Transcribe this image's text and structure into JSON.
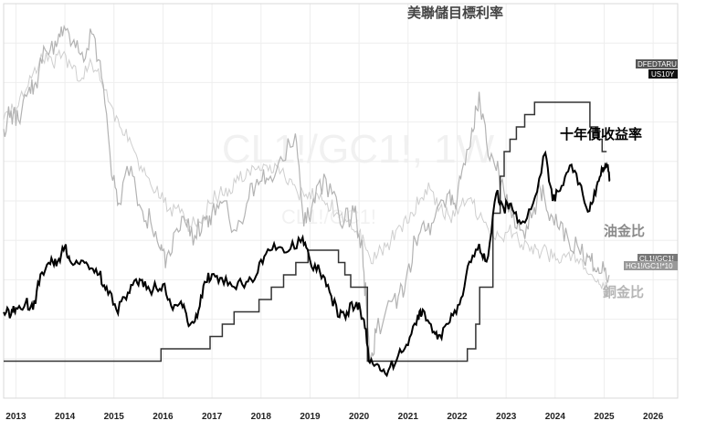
{
  "chart_data": {
    "type": "line",
    "watermark": {
      "main": "CL1!/GC1!, 1W",
      "sub": "CL1!/GC1!"
    },
    "x_ticks": [
      "2013",
      "2014",
      "2015",
      "2016",
      "2017",
      "2018",
      "2019",
      "2020",
      "2021",
      "2022",
      "2023",
      "2024",
      "2025",
      "2026"
    ],
    "xlim": [
      2012.75,
      2026.5
    ],
    "annotations": {
      "fed_rate": "美聯儲目標利率",
      "us10y": "十年債收益率",
      "oil_gold": "油金比",
      "copper_gold": "銅金比"
    },
    "badges": {
      "fed": "DFEDTARU",
      "us10y": "US10Y",
      "oil": "CL1!/GC1!",
      "copper": "HG1!/GC1!*10"
    },
    "colors": {
      "fed": "#333333",
      "us10y": "#000000",
      "oil": "#b3b3b3",
      "copper": "#cfcfcf",
      "badge_dark": "#111111",
      "badge_mid": "#555555",
      "badge_light": "#999999"
    },
    "series": [
      {
        "name": "DFEDTARU",
        "step": true,
        "ylim": [
          -0.5,
          7.5
        ],
        "points": [
          [
            2012.75,
            0.25
          ],
          [
            2015.96,
            0.5
          ],
          [
            2016.96,
            0.75
          ],
          [
            2017.21,
            1.0
          ],
          [
            2017.45,
            1.25
          ],
          [
            2017.96,
            1.5
          ],
          [
            2018.21,
            1.75
          ],
          [
            2018.46,
            2.0
          ],
          [
            2018.71,
            2.25
          ],
          [
            2018.96,
            2.5
          ],
          [
            2019.58,
            2.25
          ],
          [
            2019.71,
            2.0
          ],
          [
            2019.83,
            1.75
          ],
          [
            2020.17,
            0.25
          ],
          [
            2022.21,
            0.5
          ],
          [
            2022.38,
            1.0
          ],
          [
            2022.46,
            1.75
          ],
          [
            2022.73,
            3.25
          ],
          [
            2022.88,
            4.0
          ],
          [
            2022.96,
            4.5
          ],
          [
            2023.08,
            4.75
          ],
          [
            2023.21,
            5.0
          ],
          [
            2023.38,
            5.25
          ],
          [
            2023.58,
            5.5
          ],
          [
            2024.71,
            5.0
          ],
          [
            2024.87,
            4.75
          ],
          [
            2024.96,
            4.5
          ],
          [
            2025.05,
            4.5
          ]
        ]
      },
      {
        "name": "US10Y",
        "ylim": [
          0,
          7.8
        ],
        "points": [
          [
            2012.75,
            1.7
          ],
          [
            2012.9,
            1.65
          ],
          [
            2013.0,
            1.78
          ],
          [
            2013.2,
            1.9
          ],
          [
            2013.35,
            1.75
          ],
          [
            2013.5,
            2.45
          ],
          [
            2013.7,
            2.65
          ],
          [
            2013.85,
            2.7
          ],
          [
            2014.0,
            3.0
          ],
          [
            2014.1,
            2.72
          ],
          [
            2014.3,
            2.65
          ],
          [
            2014.5,
            2.55
          ],
          [
            2014.7,
            2.45
          ],
          [
            2014.85,
            2.2
          ],
          [
            2015.05,
            1.75
          ],
          [
            2015.25,
            1.95
          ],
          [
            2015.45,
            2.35
          ],
          [
            2015.6,
            2.2
          ],
          [
            2015.8,
            2.15
          ],
          [
            2016.0,
            2.25
          ],
          [
            2016.2,
            1.75
          ],
          [
            2016.4,
            1.8
          ],
          [
            2016.55,
            1.45
          ],
          [
            2016.7,
            1.6
          ],
          [
            2016.85,
            2.3
          ],
          [
            2017.0,
            2.45
          ],
          [
            2017.2,
            2.38
          ],
          [
            2017.45,
            2.2
          ],
          [
            2017.7,
            2.3
          ],
          [
            2017.9,
            2.42
          ],
          [
            2018.1,
            2.85
          ],
          [
            2018.35,
            2.98
          ],
          [
            2018.6,
            2.95
          ],
          [
            2018.85,
            3.18
          ],
          [
            2019.0,
            2.72
          ],
          [
            2019.2,
            2.5
          ],
          [
            2019.4,
            2.1
          ],
          [
            2019.6,
            1.6
          ],
          [
            2019.75,
            1.7
          ],
          [
            2019.95,
            1.9
          ],
          [
            2020.1,
            1.55
          ],
          [
            2020.22,
            0.7
          ],
          [
            2020.4,
            0.65
          ],
          [
            2020.6,
            0.55
          ],
          [
            2020.8,
            0.85
          ],
          [
            2021.0,
            1.05
          ],
          [
            2021.2,
            1.65
          ],
          [
            2021.3,
            1.75
          ],
          [
            2021.5,
            1.3
          ],
          [
            2021.65,
            1.25
          ],
          [
            2021.85,
            1.5
          ],
          [
            2022.05,
            1.85
          ],
          [
            2022.25,
            2.7
          ],
          [
            2022.45,
            3.05
          ],
          [
            2022.6,
            2.7
          ],
          [
            2022.8,
            4.05
          ],
          [
            2022.95,
            3.75
          ],
          [
            2023.1,
            3.85
          ],
          [
            2023.3,
            3.45
          ],
          [
            2023.55,
            3.85
          ],
          [
            2023.8,
            4.85
          ],
          [
            2023.95,
            3.9
          ],
          [
            2024.1,
            4.1
          ],
          [
            2024.3,
            4.6
          ],
          [
            2024.5,
            4.25
          ],
          [
            2024.7,
            3.7
          ],
          [
            2024.85,
            4.2
          ],
          [
            2024.97,
            4.5
          ],
          [
            2025.05,
            4.62
          ],
          [
            2025.12,
            4.3
          ]
        ]
      },
      {
        "name": "CL1!/GC1!",
        "ylim": [
          0,
          0.085
        ],
        "points": [
          [
            2012.75,
            0.058
          ],
          [
            2012.9,
            0.062
          ],
          [
            2013.05,
            0.06
          ],
          [
            2013.25,
            0.066
          ],
          [
            2013.4,
            0.068
          ],
          [
            2013.6,
            0.075
          ],
          [
            2013.8,
            0.077
          ],
          [
            2013.95,
            0.078
          ],
          [
            2014.15,
            0.0765
          ],
          [
            2014.35,
            0.0745
          ],
          [
            2014.55,
            0.0785
          ],
          [
            2014.75,
            0.069
          ],
          [
            2014.95,
            0.048
          ],
          [
            2015.1,
            0.042
          ],
          [
            2015.35,
            0.05
          ],
          [
            2015.55,
            0.041
          ],
          [
            2015.75,
            0.038
          ],
          [
            2015.95,
            0.032
          ],
          [
            2016.05,
            0.028
          ],
          [
            2016.25,
            0.036
          ],
          [
            2016.45,
            0.038
          ],
          [
            2016.65,
            0.035
          ],
          [
            2016.85,
            0.039
          ],
          [
            2017.0,
            0.04
          ],
          [
            2017.2,
            0.042
          ],
          [
            2017.5,
            0.036
          ],
          [
            2017.75,
            0.043
          ],
          [
            2017.95,
            0.046
          ],
          [
            2018.15,
            0.047
          ],
          [
            2018.4,
            0.052
          ],
          [
            2018.7,
            0.057
          ],
          [
            2018.85,
            0.04
          ],
          [
            2019.0,
            0.038
          ],
          [
            2019.2,
            0.047
          ],
          [
            2019.45,
            0.044
          ],
          [
            2019.7,
            0.038
          ],
          [
            2019.9,
            0.04
          ],
          [
            2020.05,
            0.034
          ],
          [
            2020.15,
            0.02
          ],
          [
            2020.22,
            0.009
          ],
          [
            2020.35,
            0.014
          ],
          [
            2020.6,
            0.021
          ],
          [
            2020.8,
            0.022
          ],
          [
            2020.95,
            0.025
          ],
          [
            2021.15,
            0.034
          ],
          [
            2021.35,
            0.036
          ],
          [
            2021.55,
            0.039
          ],
          [
            2021.8,
            0.044
          ],
          [
            2021.95,
            0.042
          ],
          [
            2022.1,
            0.049
          ],
          [
            2022.3,
            0.058
          ],
          [
            2022.45,
            0.066
          ],
          [
            2022.6,
            0.055
          ],
          [
            2022.8,
            0.049
          ],
          [
            2022.95,
            0.045
          ],
          [
            2023.15,
            0.04
          ],
          [
            2023.35,
            0.036
          ],
          [
            2023.55,
            0.04
          ],
          [
            2023.7,
            0.045
          ],
          [
            2023.85,
            0.04
          ],
          [
            2024.05,
            0.037
          ],
          [
            2024.25,
            0.035
          ],
          [
            2024.45,
            0.033
          ],
          [
            2024.65,
            0.031
          ],
          [
            2024.8,
            0.028
          ],
          [
            2024.95,
            0.027
          ],
          [
            2025.1,
            0.0265
          ]
        ]
      },
      {
        "name": "HG1!/GC1!*10",
        "ylim": [
          0,
          0.085
        ],
        "points": [
          [
            2012.75,
            0.06
          ],
          [
            2012.95,
            0.062
          ],
          [
            2013.15,
            0.065
          ],
          [
            2013.35,
            0.07
          ],
          [
            2013.55,
            0.073
          ],
          [
            2013.75,
            0.072
          ],
          [
            2013.95,
            0.074
          ],
          [
            2014.15,
            0.071
          ],
          [
            2014.35,
            0.069
          ],
          [
            2014.55,
            0.072
          ],
          [
            2014.75,
            0.068
          ],
          [
            2014.95,
            0.063
          ],
          [
            2015.15,
            0.058
          ],
          [
            2015.35,
            0.055
          ],
          [
            2015.55,
            0.05
          ],
          [
            2015.75,
            0.046
          ],
          [
            2015.95,
            0.043
          ],
          [
            2016.15,
            0.041
          ],
          [
            2016.35,
            0.04
          ],
          [
            2016.55,
            0.037
          ],
          [
            2016.75,
            0.038
          ],
          [
            2016.95,
            0.042
          ],
          [
            2017.15,
            0.044
          ],
          [
            2017.35,
            0.045
          ],
          [
            2017.55,
            0.047
          ],
          [
            2017.75,
            0.049
          ],
          [
            2017.95,
            0.05
          ],
          [
            2018.15,
            0.049
          ],
          [
            2018.35,
            0.05
          ],
          [
            2018.55,
            0.046
          ],
          [
            2018.75,
            0.044
          ],
          [
            2018.95,
            0.043
          ],
          [
            2019.15,
            0.044
          ],
          [
            2019.35,
            0.042
          ],
          [
            2019.55,
            0.04
          ],
          [
            2019.75,
            0.038
          ],
          [
            2019.95,
            0.036
          ],
          [
            2020.1,
            0.034
          ],
          [
            2020.25,
            0.029
          ],
          [
            2020.45,
            0.032
          ],
          [
            2020.65,
            0.034
          ],
          [
            2020.85,
            0.037
          ],
          [
            2021.05,
            0.04
          ],
          [
            2021.25,
            0.043
          ],
          [
            2021.45,
            0.045
          ],
          [
            2021.65,
            0.041
          ],
          [
            2021.85,
            0.039
          ],
          [
            2022.05,
            0.041
          ],
          [
            2022.25,
            0.043
          ],
          [
            2022.45,
            0.039
          ],
          [
            2022.65,
            0.036
          ],
          [
            2022.85,
            0.035
          ],
          [
            2023.05,
            0.036
          ],
          [
            2023.25,
            0.034
          ],
          [
            2023.45,
            0.033
          ],
          [
            2023.65,
            0.032
          ],
          [
            2023.85,
            0.031
          ],
          [
            2024.05,
            0.03
          ],
          [
            2024.25,
            0.031
          ],
          [
            2024.45,
            0.03
          ],
          [
            2024.65,
            0.027
          ],
          [
            2024.85,
            0.025
          ],
          [
            2025.0,
            0.024
          ],
          [
            2025.1,
            0.0235
          ]
        ]
      }
    ]
  }
}
